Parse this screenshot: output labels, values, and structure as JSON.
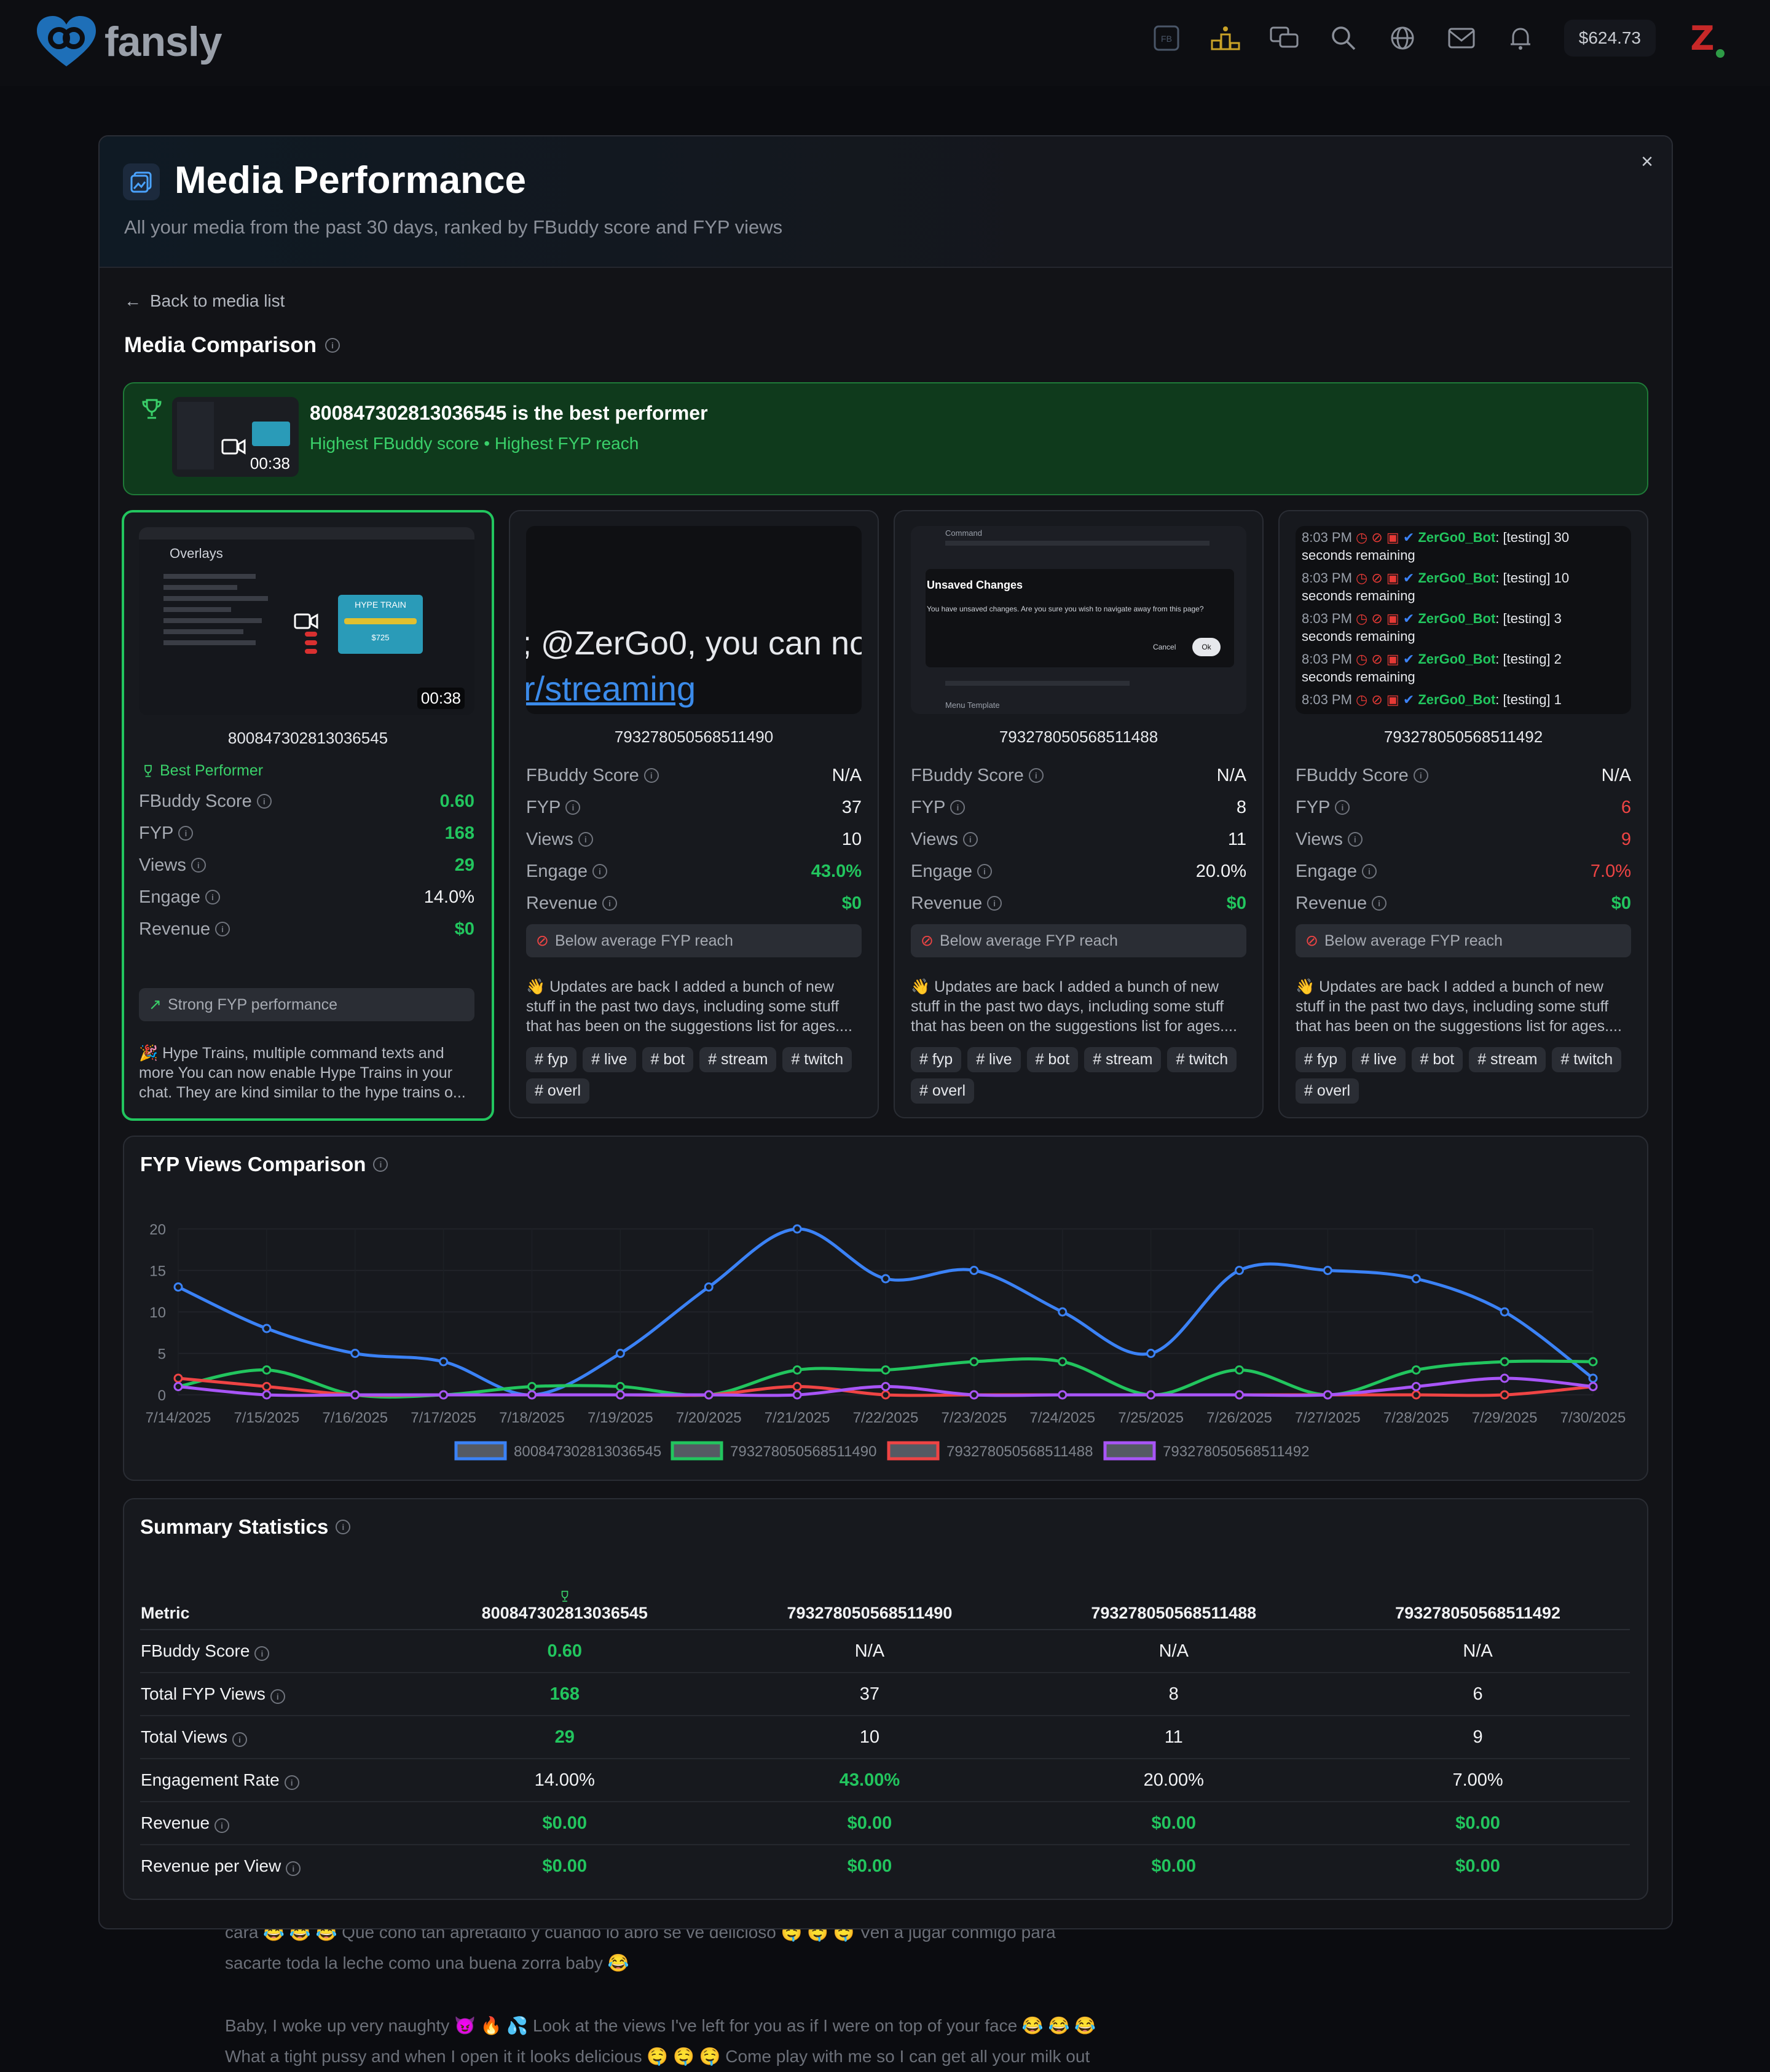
{
  "topbar": {
    "brand": "fansly",
    "balance": "$624.73",
    "fb_label": "FB",
    "avatar_letter": "Z"
  },
  "modal": {
    "title": "Media Performance",
    "subtitle": "All your media from the past 30 days, ranked by FBuddy score and FYP views",
    "close": "×",
    "back_label": "Back to media list",
    "section_title": "Media Comparison"
  },
  "banner": {
    "title": "800847302813036545 is the best performer",
    "subtitle": "Highest FBuddy score • Highest FYP reach",
    "duration": "00:38"
  },
  "metric_labels": {
    "score": "FBuddy Score",
    "fyp": "FYP",
    "views": "Views",
    "engage": "Engage",
    "revenue": "Revenue"
  },
  "cards": [
    {
      "id": "800847302813036545",
      "best_label": "Best Performer",
      "duration": "00:38",
      "score": "0.60",
      "fyp": "168",
      "views": "29",
      "engage": "14.0%",
      "revenue": "$0",
      "note": "Strong FYP performance",
      "description": "🎉 Hype Trains, multiple command texts and more You can now enable Hype Trains in your chat. They are kind similar to the hype trains o...",
      "thumb_text": "Overlays",
      "thumb_sub": "HYPE TRAIN",
      "thumb_price": "$725"
    },
    {
      "id": "793278050568511490",
      "score": "N/A",
      "fyp": "37",
      "views": "10",
      "engage": "43.0%",
      "revenue": "$0",
      "note": "Below average FYP reach",
      "description": "👋 Updates are back I added a bunch of new stuff in the past two days, including some stuff that has been on the suggestions list for ages....",
      "tags": [
        "# fyp",
        "# live",
        "# bot",
        "# stream",
        "# twitch",
        "# overl"
      ],
      "thumb_line1": "; @ZerGo0, you can nov",
      "thumb_line2": "r/streaming"
    },
    {
      "id": "793278050568511488",
      "score": "N/A",
      "fyp": "8",
      "views": "11",
      "engage": "20.0%",
      "revenue": "$0",
      "note": "Below average FYP reach",
      "description": "👋 Updates are back I added a bunch of new stuff in the past two days, including some stuff that has been on the suggestions list for ages....",
      "tags": [
        "# fyp",
        "# live",
        "# bot",
        "# stream",
        "# twitch",
        "# overl"
      ],
      "thumb_title": "Unsaved Changes",
      "thumb_body": "You have unsaved changes. Are you sure you wish to navigate away from this page?",
      "thumb_cancel": "Cancel",
      "thumb_ok": "Ok",
      "thumb_cmd": "Command",
      "thumb_menu": "Menu Template"
    },
    {
      "id": "793278050568511492",
      "score": "N/A",
      "fyp": "6",
      "views": "9",
      "engage": "7.0%",
      "revenue": "$0",
      "note": "Below average FYP reach",
      "description": "👋 Updates are back I added a bunch of new stuff in the past two days, including some stuff that has been on the suggestions list for ages....",
      "tags": [
        "# fyp",
        "# live",
        "# bot",
        "# stream",
        "# twitch",
        "# overl"
      ],
      "chat_lines": [
        {
          "time": "8:03 PM",
          "user": "ZerGo0_Bot",
          "text": ": [testing] 30",
          "cont": "seconds remaining"
        },
        {
          "time": "8:03 PM",
          "user": "ZerGo0_Bot",
          "text": ": [testing] 10",
          "cont": "seconds remaining"
        },
        {
          "time": "8:03 PM",
          "user": "ZerGo0_Bot",
          "text": ": [testing] 3",
          "cont": "seconds remaining"
        },
        {
          "time": "8:03 PM",
          "user": "ZerGo0_Bot",
          "text": ": [testing] 2",
          "cont": "seconds remaining"
        },
        {
          "time": "8:03 PM",
          "user": "ZerGo0_Bot",
          "text": ": [testing] 1",
          "cont": ""
        }
      ]
    }
  ],
  "chart_data": {
    "type": "line",
    "title": "FYP Views Comparison",
    "x": [
      "7/14/2025",
      "7/15/2025",
      "7/16/2025",
      "7/17/2025",
      "7/18/2025",
      "7/19/2025",
      "7/20/2025",
      "7/21/2025",
      "7/22/2025",
      "7/23/2025",
      "7/24/2025",
      "7/25/2025",
      "7/26/2025",
      "7/27/2025",
      "7/28/2025",
      "7/29/2025",
      "7/30/2025"
    ],
    "ylim": [
      0,
      20
    ],
    "yticks": [
      0,
      5,
      10,
      15,
      20
    ],
    "series": [
      {
        "name": "800847302813036545",
        "color": "#3b82f6",
        "values": [
          13,
          8,
          5,
          4,
          0,
          5,
          13,
          20,
          14,
          15,
          10,
          5,
          15,
          15,
          14,
          10,
          2
        ]
      },
      {
        "name": "793278050568511490",
        "color": "#22c55e",
        "values": [
          1,
          3,
          0,
          0,
          1,
          1,
          0,
          3,
          3,
          4,
          4,
          0,
          3,
          0,
          3,
          4,
          4
        ]
      },
      {
        "name": "793278050568511488",
        "color": "#ef4444",
        "values": [
          2,
          1,
          0,
          0,
          0,
          0,
          0,
          1,
          0,
          0,
          0,
          0,
          0,
          0,
          0,
          0,
          1
        ]
      },
      {
        "name": "793278050568511492",
        "color": "#a855f7",
        "values": [
          1,
          0,
          0,
          0,
          0,
          0,
          0,
          0,
          1,
          0,
          0,
          0,
          0,
          0,
          1,
          2,
          1
        ]
      }
    ]
  },
  "summary": {
    "title": "Summary Statistics",
    "metric_header": "Metric",
    "columns": [
      "800847302813036545",
      "793278050568511490",
      "793278050568511488",
      "793278050568511492"
    ],
    "rows": [
      {
        "name": "FBuddy Score",
        "values": [
          "0.60",
          "N/A",
          "N/A",
          "N/A"
        ]
      },
      {
        "name": "Total FYP Views",
        "values": [
          "168",
          "37",
          "8",
          "6"
        ]
      },
      {
        "name": "Total Views",
        "values": [
          "29",
          "10",
          "11",
          "9"
        ]
      },
      {
        "name": "Engagement Rate",
        "values": [
          "14.00%",
          "43.00%",
          "20.00%",
          "7.00%"
        ]
      },
      {
        "name": "Revenue",
        "values": [
          "$0.00",
          "$0.00",
          "$0.00",
          "$0.00"
        ]
      },
      {
        "name": "Revenue per View",
        "values": [
          "$0.00",
          "$0.00",
          "$0.00",
          "$0.00"
        ]
      }
    ]
  },
  "feed": {
    "line1": "cara 😂 😂 😂  Que cono tan apretadito y cuando lo abro se ve delicioso 🤤 🤤 🤤  Ven a jugar conmigo para",
    "line2": "sacarte toda la leche como una buena zorra baby 😂",
    "line3": "Baby, I woke up very naughty 😈 🔥 💦  Look at the views I've left for you as if I were on top of your face 😂 😂 😂",
    "line4": "What a tight pussy and when I open it it looks delicious 🤤 🤤 🤤  Come play with me so I can get all your milk out"
  }
}
